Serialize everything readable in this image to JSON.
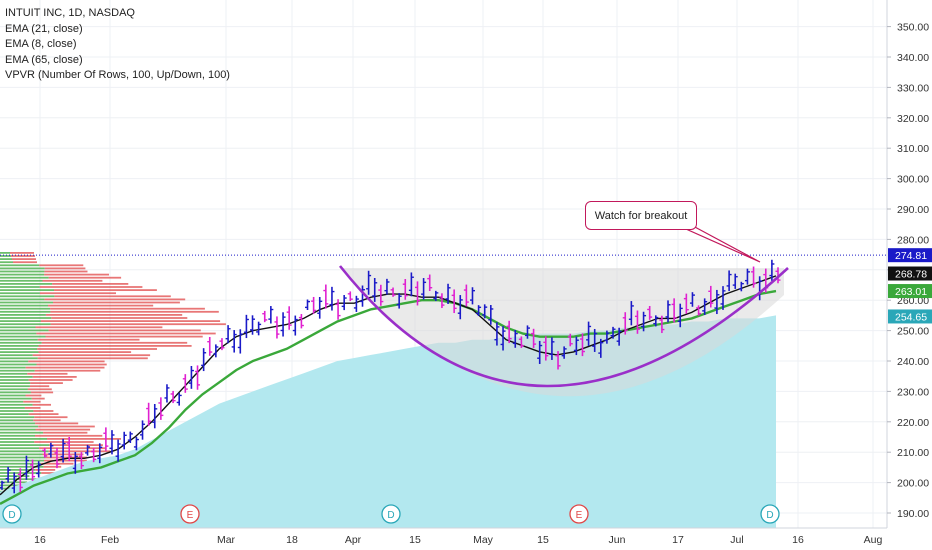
{
  "legend": {
    "title": "INTUIT INC, 1D, NASDAQ",
    "ema21": "EMA (21, close)",
    "ema8": "EMA (8, close)",
    "ema65": "EMA (65, close)",
    "vpvr": "VPVR (Number Of Rows, 100, Up/Down, 100)"
  },
  "annotation": "Watch for breakout",
  "colors": {
    "up_bar": "#1a1ac8",
    "down_bar": "#e020d0",
    "ema8": "#111111",
    "ema21": "#3aa83a",
    "ema65_area": "#b3e8ef",
    "cup": "#9a2fc9",
    "price_line": "#1a1ac8",
    "vp_up": "#3aa83a",
    "vp_down": "#e04848"
  },
  "chart_data": {
    "type": "line",
    "symbol": "INTUIT INC, 1D, NASDAQ",
    "y_ticks": [
      190,
      200,
      210,
      220,
      230,
      240,
      250,
      260,
      270,
      280,
      290,
      300,
      310,
      320,
      330,
      340,
      350
    ],
    "y_tick_labels": [
      "190.00",
      "200.00",
      "210.00",
      "220.00",
      "230.00",
      "240.00",
      "250.00",
      "260.00",
      "270.00",
      "280.00",
      "290.00",
      "300.00",
      "310.00",
      "320.00",
      "330.00",
      "340.00",
      "350.00"
    ],
    "ylim": [
      186,
      356
    ],
    "x_ticks": [
      "16",
      "Feb",
      "Mar",
      "18",
      "Apr",
      "15",
      "May",
      "15",
      "Jun",
      "17",
      "Jul",
      "16",
      "Aug"
    ],
    "price_labels": [
      {
        "value": 274.81,
        "label": "274.81",
        "color": "#1a1ac8"
      },
      {
        "value": 268.78,
        "label": "268.78",
        "color": "#111111"
      },
      {
        "value": 263.01,
        "label": "263.01",
        "color": "#3aa83a"
      },
      {
        "value": 254.65,
        "label": "254.65",
        "color": "#2aa7b8"
      }
    ],
    "last_price": 274.81,
    "events": [
      {
        "label": "D",
        "x": "16",
        "color": "#2aa7b8"
      },
      {
        "label": "E",
        "x": "Mar",
        "color": "#e04848"
      },
      {
        "label": "D",
        "x": "Apr",
        "color": "#2aa7b8"
      },
      {
        "label": "E",
        "x": "15",
        "color": "#e04848"
      },
      {
        "label": "D",
        "x": "Jul",
        "color": "#2aa7b8"
      }
    ],
    "series": [
      {
        "name": "EMA (8, close)",
        "values": [
          196,
          201,
          205,
          207,
          208,
          208,
          209,
          211,
          215,
          220,
          226,
          232,
          238,
          244,
          248,
          250,
          251,
          252,
          254,
          257,
          259,
          259,
          261,
          262,
          262,
          261,
          261,
          259,
          257,
          252,
          247,
          245,
          243,
          242,
          243,
          245,
          247,
          250,
          252,
          254,
          254,
          256,
          259,
          262,
          264,
          266,
          268
        ]
      },
      {
        "name": "EMA (21, close)",
        "values": [
          193,
          196,
          199,
          201,
          203,
          204,
          205,
          207,
          209,
          213,
          218,
          224,
          229,
          233,
          237,
          240,
          242,
          244,
          247,
          250,
          253,
          255,
          257,
          258,
          259,
          260,
          260,
          259,
          257,
          254,
          251,
          249,
          248,
          248,
          248,
          249,
          249,
          250,
          251,
          252,
          253,
          254,
          256,
          258,
          260,
          262,
          263
        ]
      },
      {
        "name": "EMA (65, close)",
        "values": [
          197,
          199,
          201,
          203,
          205,
          207,
          208,
          209,
          211,
          214,
          217,
          220,
          223,
          226,
          228,
          230,
          232,
          234,
          236,
          238,
          240,
          241,
          242,
          243,
          244,
          245,
          246,
          246,
          247,
          247,
          248,
          248,
          249,
          249,
          249,
          250,
          250,
          251,
          251,
          252,
          252,
          253,
          253,
          254,
          254,
          254,
          255
        ]
      }
    ]
  }
}
